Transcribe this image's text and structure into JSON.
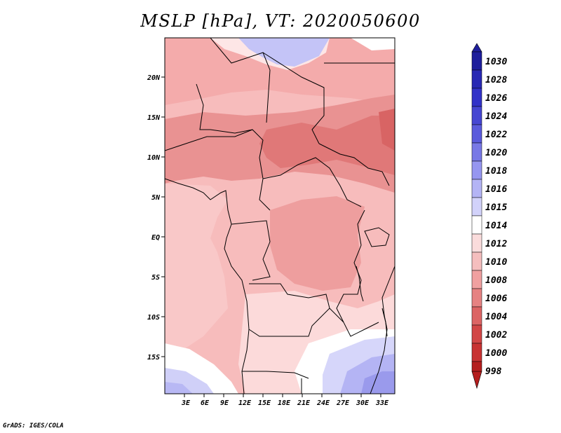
{
  "map": {
    "title": "MSLP [hPa], VT: 2020050600",
    "variable": "MSLP",
    "units": "hPa",
    "valid_time": "2020050600",
    "credit": "GrADS: IGES/COLA",
    "x_ticks": [
      "3E",
      "6E",
      "9E",
      "12E",
      "15E",
      "18E",
      "21E",
      "24E",
      "27E",
      "30E",
      "33E"
    ],
    "y_ticks": [
      "20N",
      "15N",
      "10N",
      "5N",
      "EQ",
      "5S",
      "10S",
      "15S"
    ],
    "colorbar": {
      "levels": [
        "1030",
        "1028",
        "1026",
        "1024",
        "1022",
        "1020",
        "1018",
        "1016",
        "1015",
        "1014",
        "1012",
        "1010",
        "1008",
        "1006",
        "1004",
        "1002",
        "1000",
        "998"
      ],
      "colors": [
        "#1e1e9c",
        "#2828b4",
        "#3232c8",
        "#4646d2",
        "#5a5adc",
        "#7878e6",
        "#9696f0",
        "#b4b4f5",
        "#d2d2fa",
        "#ffffff",
        "#fadcdc",
        "#f5bebe",
        "#f0a0a0",
        "#e68282",
        "#dc6464",
        "#d24646",
        "#c83232",
        "#b41e1e"
      ]
    },
    "palette": {
      "very_low": "#e27272",
      "low": "#eb9494",
      "mid": "#f4b0b0",
      "mid_high": "#fac8c8",
      "high": "#fde6e6",
      "neutral": "#ffffff",
      "above": "#d8d8fa",
      "above2": "#b8b8f4",
      "above3": "#9a9aec"
    }
  }
}
